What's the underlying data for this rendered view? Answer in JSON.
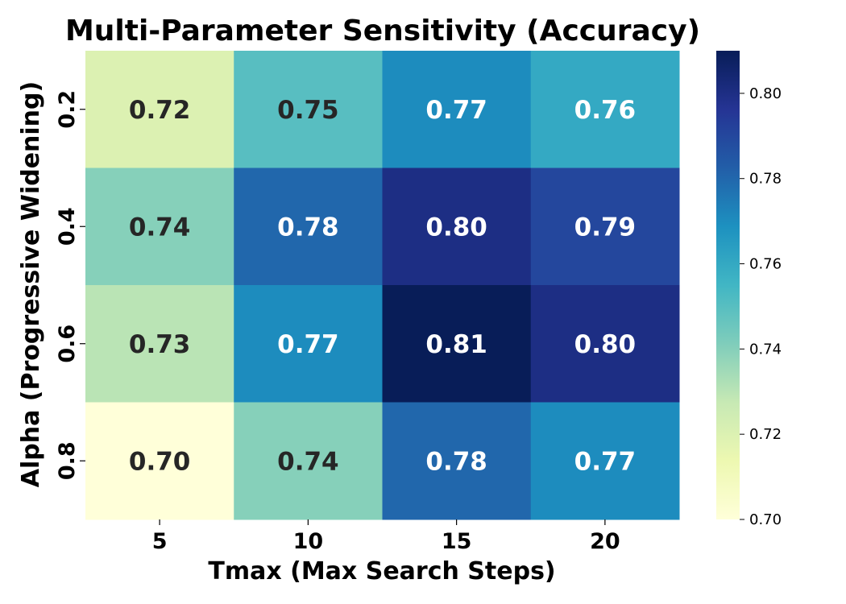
{
  "chart_data": {
    "type": "heatmap",
    "title": "Multi-Parameter Sensitivity (Accuracy)",
    "xlabel": "Tmax (Max Search Steps)",
    "ylabel": "Alpha (Progressive Widening)",
    "x_categories": [
      "5",
      "10",
      "15",
      "20"
    ],
    "y_categories": [
      "0.2",
      "0.4",
      "0.6",
      "0.8"
    ],
    "values": [
      [
        0.72,
        0.75,
        0.77,
        0.76
      ],
      [
        0.74,
        0.78,
        0.8,
        0.79
      ],
      [
        0.73,
        0.77,
        0.81,
        0.8
      ],
      [
        0.7,
        0.74,
        0.78,
        0.77
      ]
    ],
    "cell_labels": [
      [
        "0.72",
        "0.75",
        "0.77",
        "0.76"
      ],
      [
        "0.74",
        "0.78",
        "0.80",
        "0.79"
      ],
      [
        "0.73",
        "0.77",
        "0.81",
        "0.80"
      ],
      [
        "0.70",
        "0.74",
        "0.78",
        "0.77"
      ]
    ],
    "colorbar": {
      "range": [
        0.7,
        0.81
      ],
      "ticks": [
        0.7,
        0.72,
        0.74,
        0.76,
        0.78,
        0.8
      ],
      "tick_labels": [
        "0.70",
        "0.72",
        "0.74",
        "0.76",
        "0.78",
        "0.80"
      ],
      "colormap": "YlGnBu"
    },
    "label_colors": {
      "dark": "#262626",
      "light": "#ffffff"
    }
  }
}
